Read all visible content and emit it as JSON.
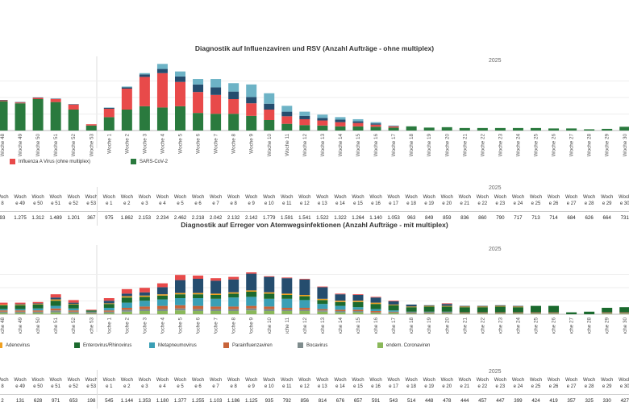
{
  "chart1": {
    "title": "Diagnostik auf Influenzaviren und RSV (Anzahl Aufträge - ohne multiplex)",
    "year_label": "2025",
    "type": "bar",
    "categories": [
      "Woche 48",
      "Woche 49",
      "Woche 50",
      "Woche 51",
      "Woche 52",
      "Woche 53",
      "Woche 1",
      "Woche 2",
      "Woche 3",
      "Woche 4",
      "Woche 5",
      "Woche 6",
      "Woche 7",
      "Woche 8",
      "Woche 9",
      "Woche 10",
      "Woche 11",
      "Woche 12",
      "Woche 13",
      "Woche 14",
      "Woche 15",
      "Woche 16",
      "Woche 17",
      "Woche 18",
      "Woche 19",
      "Woche 20",
      "Woche 21",
      "Woche 22",
      "Woche 23",
      "Woche 24",
      "Woche 25",
      "Woche 26",
      "Woche 27",
      "Woche 28",
      "Woche 29",
      "Woche 30"
    ],
    "colors": {
      "sars": "#2a7a3e",
      "flu": "#e84a4a",
      "navy": "#254d6e",
      "teal": "#6db3c6"
    },
    "series": [
      {
        "name": "SARS-CoV-2",
        "key": "sars",
        "values": [
          70,
          65,
          75,
          68,
          50,
          12,
          32,
          50,
          58,
          55,
          58,
          42,
          40,
          40,
          35,
          25,
          16,
          13,
          12,
          10,
          10,
          9,
          7,
          10,
          7,
          8,
          6,
          6,
          6,
          6,
          6,
          5,
          5,
          3,
          4,
          9
        ]
      },
      {
        "name": "Influenza A Virus (ohne multiplex)",
        "key": "flu",
        "values": [
          2,
          2,
          3,
          7,
          12,
          3,
          20,
          50,
          70,
          82,
          58,
          50,
          45,
          35,
          30,
          25,
          18,
          14,
          12,
          10,
          8,
          5,
          3,
          0,
          0,
          0,
          0,
          0,
          0,
          0,
          0,
          0,
          0,
          0,
          0,
          0
        ]
      },
      {
        "name": "",
        "key": "navy",
        "values": [
          1,
          1,
          1,
          1,
          1,
          0,
          2,
          3,
          6,
          10,
          13,
          18,
          18,
          18,
          15,
          14,
          11,
          8,
          6,
          6,
          4,
          3,
          1,
          0,
          0,
          0,
          0,
          0,
          0,
          0,
          0,
          0,
          0,
          0,
          0,
          0
        ]
      },
      {
        "name": "",
        "key": "teal",
        "values": [
          0,
          0,
          0,
          0,
          0,
          0,
          1,
          2,
          3,
          12,
          12,
          13,
          20,
          20,
          30,
          25,
          14,
          10,
          8,
          6,
          5,
          3,
          1,
          0,
          0,
          0,
          0,
          0,
          0,
          0,
          0,
          0,
          0,
          0,
          0,
          0
        ]
      }
    ],
    "legend": [
      {
        "label": "Influenza A Virus (ohne multiplex)",
        "color": "#e84a4a"
      },
      {
        "label": "SARS-CoV-2",
        "color": "#2a7a3e"
      }
    ]
  },
  "table1": {
    "year_label": "2025",
    "headers_top": [
      "Woch",
      "Woch",
      "Woch",
      "Woch",
      "Woch",
      "Woch",
      "Woch",
      "Woch",
      "Woch",
      "Woch",
      "Woch",
      "Woch",
      "Woch",
      "Woch",
      "Woch",
      "Woch",
      "Woch",
      "Woch",
      "Woch",
      "Woch",
      "Woch",
      "Woch",
      "Woch",
      "Woch",
      "Woch",
      "Woch",
      "Woch",
      "Woch",
      "Woch",
      "Woch",
      "Woch",
      "Woch",
      "Woch",
      "Woch",
      "Woch",
      "Woch"
    ],
    "headers_bottom": [
      "8",
      "e 49",
      "e 50",
      "e 51",
      "e 52",
      "e 53",
      "e 1",
      "e 2",
      "e 3",
      "e 4",
      "e 5",
      "e 6",
      "e 7",
      "e 8",
      "e 9",
      "e 10",
      "e 11",
      "e 12",
      "e 13",
      "e 14",
      "e 15",
      "e 16",
      "e 17",
      "e 18",
      "e 19",
      "e 20",
      "e 21",
      "e 22",
      "e 23",
      "e 24",
      "e 25",
      "e 26",
      "e 27",
      "e 28",
      "e 29",
      "e 30"
    ],
    "values": [
      "93",
      "1.275",
      "1.312",
      "1.489",
      "1.201",
      "367",
      "975",
      "1.862",
      "2.153",
      "2.234",
      "2.462",
      "2.218",
      "2.042",
      "2.132",
      "2.142",
      "1.779",
      "1.591",
      "1.541",
      "1.522",
      "1.322",
      "1.264",
      "1.140",
      "1.053",
      "963",
      "849",
      "859",
      "836",
      "860",
      "790",
      "717",
      "713",
      "714",
      "684",
      "626",
      "664",
      "731"
    ]
  },
  "chart2": {
    "title": "Diagnostik auf Erreger von Atemwegsinfektionen (Anzahl Aufträge - mit multiplex)",
    "year_label": "2025",
    "type": "bar",
    "categories": [
      "Woche 48",
      "Woche 49",
      "Woche 50",
      "Woche 51",
      "Woche 52",
      "Woche 53",
      "Woche 1",
      "Woche 2",
      "Woche 3",
      "Woche 4",
      "Woche 5",
      "Woche 6",
      "Woche 7",
      "Woche 8",
      "Woche 9",
      "Woche 10",
      "Woche 11",
      "Woche 12",
      "Woche 13",
      "Woche 14",
      "Woche 15",
      "Woche 16",
      "Woche 17",
      "Woche 18",
      "Woche 19",
      "Woche 20",
      "Woche 21",
      "Woche 22",
      "Woche 23",
      "Woche 24",
      "Woche 25",
      "Woche 26",
      "Woche 27",
      "Woche 28",
      "Woche 29",
      "Woche 30"
    ],
    "colors": {
      "entero": "#1b6a2e",
      "meta": "#3a9fb5",
      "para": "#c8643a",
      "boca": "#7f8c8d",
      "corona": "#8ab85a",
      "adeno": "#f0a020",
      "navy": "#254d6e",
      "red": "#e84a4a"
    },
    "series": [
      {
        "name": "endem. Coronaviren",
        "key": "corona",
        "values": [
          2,
          2,
          2,
          3,
          2,
          1,
          2,
          4,
          5,
          5,
          6,
          5,
          5,
          5,
          6,
          5,
          5,
          5,
          4,
          3,
          3,
          2,
          2,
          1,
          1,
          1,
          1,
          1,
          1,
          1,
          1,
          1,
          0,
          0,
          1,
          1
        ]
      },
      {
        "name": "Bocavirus",
        "key": "boca",
        "values": [
          2,
          2,
          2,
          3,
          2,
          1,
          2,
          3,
          3,
          3,
          3,
          3,
          3,
          3,
          3,
          3,
          2,
          2,
          2,
          2,
          2,
          1,
          1,
          1,
          1,
          1,
          1,
          1,
          1,
          1,
          1,
          1,
          0,
          0,
          1,
          1
        ]
      },
      {
        "name": "Parainfluenzaviren",
        "key": "para",
        "values": [
          2,
          2,
          2,
          3,
          2,
          1,
          2,
          3,
          4,
          5,
          5,
          5,
          4,
          4,
          4,
          4,
          3,
          3,
          2,
          2,
          2,
          2,
          1,
          1,
          1,
          1,
          1,
          1,
          1,
          1,
          1,
          1,
          0,
          0,
          1,
          1
        ]
      },
      {
        "name": "Metapneumovirus",
        "key": "meta",
        "values": [
          2,
          2,
          3,
          4,
          3,
          1,
          4,
          8,
          9,
          10,
          11,
          12,
          12,
          14,
          14,
          12,
          14,
          12,
          8,
          6,
          4,
          3,
          2,
          1,
          1,
          1,
          0,
          0,
          0,
          0,
          0,
          0,
          0,
          0,
          0,
          0
        ]
      },
      {
        "name": "Enterovirus/Rhinovirus",
        "key": "entero",
        "values": [
          6,
          6,
          6,
          8,
          6,
          2,
          6,
          8,
          6,
          6,
          6,
          6,
          6,
          6,
          8,
          8,
          6,
          6,
          6,
          6,
          8,
          8,
          8,
          7,
          8,
          8,
          8,
          8,
          9,
          8,
          10,
          10,
          3,
          4,
          7,
          8
        ]
      },
      {
        "name": "Adenovirus",
        "key": "adeno",
        "values": [
          1,
          1,
          1,
          2,
          1,
          0,
          1,
          2,
          2,
          2,
          2,
          2,
          2,
          2,
          2,
          2,
          2,
          2,
          2,
          2,
          2,
          2,
          1,
          1,
          1,
          1,
          1,
          1,
          1,
          1,
          0,
          0,
          0,
          0,
          0,
          0
        ]
      },
      {
        "name": "",
        "key": "navy",
        "values": [
          0,
          1,
          1,
          3,
          2,
          0,
          4,
          4,
          5,
          11,
          20,
          22,
          20,
          20,
          26,
          24,
          24,
          24,
          18,
          10,
          9,
          8,
          5,
          3,
          1,
          3,
          1,
          1,
          1,
          1,
          0,
          0,
          0,
          0,
          0,
          0
        ]
      },
      {
        "name": "",
        "key": "red",
        "values": [
          3,
          2,
          2,
          5,
          4,
          1,
          4,
          7,
          7,
          6,
          8,
          5,
          4,
          4,
          2,
          1,
          1,
          1,
          1,
          1,
          1,
          1,
          1,
          0,
          0,
          1,
          0,
          0,
          0,
          0,
          0,
          0,
          0,
          0,
          0,
          0
        ]
      }
    ],
    "legend": [
      {
        "label": "Adenovirus",
        "color": "#f0a020"
      },
      {
        "label": "Enterovirus/Rhinovirus",
        "color": "#1b6a2e"
      },
      {
        "label": "Metapneumovirus",
        "color": "#3a9fb5"
      },
      {
        "label": "Parainfluenzaviren",
        "color": "#c8643a"
      },
      {
        "label": "Bocavirus",
        "color": "#7f8c8d"
      },
      {
        "label": "endem. Coronaviren",
        "color": "#8ab85a"
      }
    ]
  },
  "table2": {
    "year_label": "2025",
    "headers_top": [
      "Woch",
      "Woch",
      "Woch",
      "Woch",
      "Woch",
      "Woch",
      "Woch",
      "Woch",
      "Woch",
      "Woch",
      "Woch",
      "Woch",
      "Woch",
      "Woch",
      "Woch",
      "Woch",
      "Woch",
      "Woch",
      "Woch",
      "Woch",
      "Woch",
      "Woch",
      "Woch",
      "Woch",
      "Woch",
      "Woch",
      "Woch",
      "Woch",
      "Woch",
      "Woch",
      "Woch",
      "Woch",
      "Woch",
      "Woch",
      "Woch",
      "Woch"
    ],
    "headers_bottom": [
      "8",
      "e 49",
      "e 50",
      "e 51",
      "e 52",
      "e 53",
      "e 1",
      "e 2",
      "e 3",
      "e 4",
      "e 5",
      "e 6",
      "e 7",
      "e 8",
      "e 9",
      "e 10",
      "e 11",
      "e 12",
      "e 13",
      "e 14",
      "e 15",
      "e 16",
      "e 17",
      "e 18",
      "e 19",
      "e 20",
      "e 21",
      "e 22",
      "e 23",
      "e 24",
      "e 25",
      "e 26",
      "e 27",
      "e 28",
      "e 29",
      "e 30"
    ],
    "values": [
      "2",
      "131",
      "628",
      "971",
      "653",
      "198",
      "545",
      "1.144",
      "1.353",
      "1.180",
      "1.377",
      "1.255",
      "1.103",
      "1.186",
      "1.125",
      "935",
      "792",
      "856",
      "814",
      "676",
      "657",
      "591",
      "543",
      "514",
      "448",
      "478",
      "444",
      "457",
      "447",
      "399",
      "424",
      "419",
      "357",
      "325",
      "330",
      "427"
    ]
  }
}
